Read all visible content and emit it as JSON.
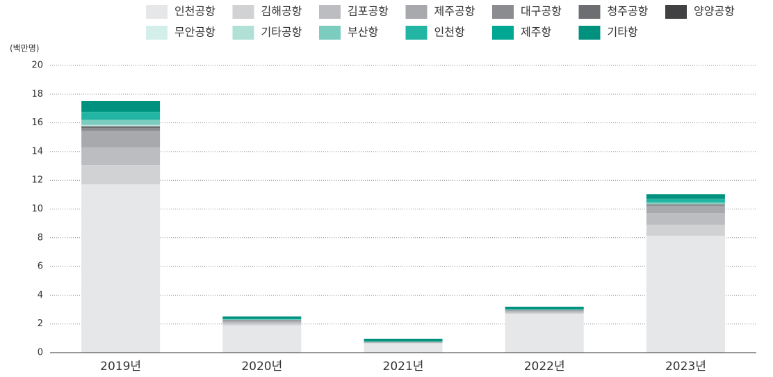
{
  "chart_data": {
    "type": "stacked_bar",
    "ylabel": "(백만명)",
    "categories": [
      "2019년",
      "2020년",
      "2021년",
      "2022년",
      "2023년"
    ],
    "series": [
      {
        "name": "인천공항",
        "color": "#e6e7e8",
        "values": [
          11.72,
          1.89,
          0.65,
          2.7,
          8.14
        ]
      },
      {
        "name": "김해공항",
        "color": "#d1d2d4",
        "values": [
          1.35,
          0.12,
          0.02,
          0.07,
          0.77
        ]
      },
      {
        "name": "김포공항",
        "color": "#bcbdc0",
        "values": [
          1.22,
          0.12,
          0.03,
          0.1,
          0.82
        ]
      },
      {
        "name": "제주공항",
        "color": "#a7a9ac",
        "values": [
          1.16,
          0.1,
          0.03,
          0.06,
          0.49
        ]
      },
      {
        "name": "대구공항",
        "color": "#8a8c8f",
        "values": [
          0.19,
          0.02,
          0.01,
          0.01,
          0.05
        ]
      },
      {
        "name": "청주공항",
        "color": "#6d6e71",
        "values": [
          0.1,
          0.02,
          0.01,
          0.02,
          0.05
        ]
      },
      {
        "name": "양양공항",
        "color": "#414042",
        "values": [
          0.02,
          0,
          0,
          0,
          0.01
        ]
      },
      {
        "name": "무안공항",
        "color": "#d4eeea",
        "values": [
          0.05,
          0,
          0,
          0,
          0.01
        ]
      },
      {
        "name": "기타공항",
        "color": "#b0e0d6",
        "values": [
          0.05,
          0.01,
          0,
          0.01,
          0.02
        ]
      },
      {
        "name": "부산항",
        "color": "#7ccdc0",
        "values": [
          0.36,
          0.03,
          0.02,
          0.02,
          0.1
        ]
      },
      {
        "name": "인천항",
        "color": "#23b5a3",
        "values": [
          0.53,
          0.03,
          0.02,
          0.02,
          0.24
        ]
      },
      {
        "name": "제주항",
        "color": "#00a893",
        "values": [
          0.03,
          0,
          0,
          0,
          0.01
        ]
      },
      {
        "name": "기타항",
        "color": "#00927e",
        "values": [
          0.75,
          0.18,
          0.18,
          0.19,
          0.32
        ]
      }
    ],
    "ylim": [
      0,
      20
    ],
    "yticks": [
      0,
      2,
      4,
      6,
      8,
      10,
      12,
      14,
      16,
      18,
      20
    ],
    "grid": true
  }
}
